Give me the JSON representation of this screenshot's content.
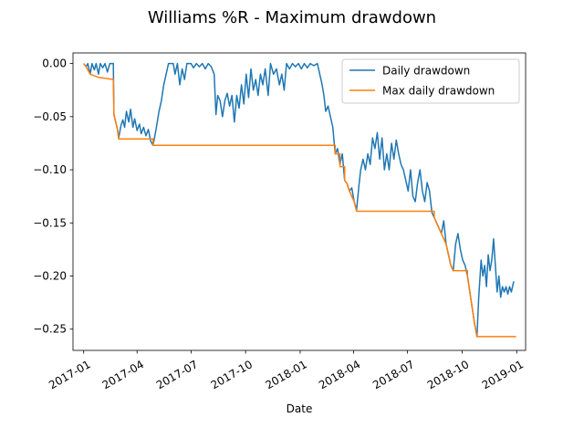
{
  "chart_data": {
    "type": "line",
    "title": "Williams %R - Maximum drawdown",
    "xlabel": "Date",
    "ylabel": "",
    "x_ticks": [
      "2017-01",
      "2017-04",
      "2017-07",
      "2017-10",
      "2018-01",
      "2018-04",
      "2018-07",
      "2018-10",
      "2019-01"
    ],
    "y_ticks": [
      "0.00",
      "−0.05",
      "−0.10",
      "−0.15",
      "−0.20",
      "−0.25"
    ],
    "xlim": [
      "2016-12-14",
      "2019-01-16"
    ],
    "ylim": [
      -0.27,
      0.01
    ],
    "grid": false,
    "legend_position": "top-right",
    "series": [
      {
        "name": "Daily drawdown",
        "color": "#1f77b4",
        "points": [
          [
            "2017-01-01",
            0.0
          ],
          [
            "2017-01-05",
            -0.003
          ],
          [
            "2017-01-08",
            0.0
          ],
          [
            "2017-01-12",
            -0.01
          ],
          [
            "2017-01-15",
            0.0
          ],
          [
            "2017-01-19",
            -0.006
          ],
          [
            "2017-01-22",
            0.0
          ],
          [
            "2017-01-26",
            -0.01
          ],
          [
            "2017-01-29",
            0.0
          ],
          [
            "2017-02-02",
            -0.004
          ],
          [
            "2017-02-06",
            0.0
          ],
          [
            "2017-02-10",
            -0.008
          ],
          [
            "2017-02-14",
            0.0
          ],
          [
            "2017-02-20",
            0.0
          ],
          [
            "2017-02-21",
            -0.048
          ],
          [
            "2017-02-24",
            -0.055
          ],
          [
            "2017-02-27",
            -0.062
          ],
          [
            "2017-03-01",
            -0.07
          ],
          [
            "2017-03-05",
            -0.058
          ],
          [
            "2017-03-08",
            -0.053
          ],
          [
            "2017-03-11",
            -0.06
          ],
          [
            "2017-03-14",
            -0.045
          ],
          [
            "2017-03-18",
            -0.055
          ],
          [
            "2017-03-21",
            -0.043
          ],
          [
            "2017-03-25",
            -0.06
          ],
          [
            "2017-03-28",
            -0.052
          ],
          [
            "2017-04-01",
            -0.063
          ],
          [
            "2017-04-05",
            -0.057
          ],
          [
            "2017-04-08",
            -0.066
          ],
          [
            "2017-04-12",
            -0.06
          ],
          [
            "2017-04-16",
            -0.068
          ],
          [
            "2017-04-20",
            -0.062
          ],
          [
            "2017-04-24",
            -0.073
          ],
          [
            "2017-04-28",
            -0.077
          ],
          [
            "2017-05-03",
            -0.062
          ],
          [
            "2017-05-08",
            -0.045
          ],
          [
            "2017-05-12",
            -0.035
          ],
          [
            "2017-05-16",
            -0.02
          ],
          [
            "2017-05-20",
            -0.01
          ],
          [
            "2017-05-24",
            0.0
          ],
          [
            "2017-06-01",
            0.0
          ],
          [
            "2017-06-04",
            -0.01
          ],
          [
            "2017-06-08",
            0.0
          ],
          [
            "2017-06-12",
            -0.02
          ],
          [
            "2017-06-16",
            -0.005
          ],
          [
            "2017-06-20",
            -0.015
          ],
          [
            "2017-06-24",
            0.0
          ],
          [
            "2017-07-01",
            0.0
          ],
          [
            "2017-07-05",
            -0.004
          ],
          [
            "2017-07-10",
            0.0
          ],
          [
            "2017-07-15",
            -0.003
          ],
          [
            "2017-07-20",
            0.0
          ],
          [
            "2017-07-25",
            -0.005
          ],
          [
            "2017-07-30",
            0.0
          ],
          [
            "2017-08-04",
            -0.003
          ],
          [
            "2017-08-09",
            -0.01
          ],
          [
            "2017-08-12",
            -0.048
          ],
          [
            "2017-08-15",
            -0.03
          ],
          [
            "2017-08-19",
            -0.035
          ],
          [
            "2017-08-23",
            -0.05
          ],
          [
            "2017-08-27",
            -0.035
          ],
          [
            "2017-08-31",
            -0.028
          ],
          [
            "2017-09-04",
            -0.04
          ],
          [
            "2017-09-08",
            -0.03
          ],
          [
            "2017-09-12",
            -0.055
          ],
          [
            "2017-09-16",
            -0.03
          ],
          [
            "2017-09-20",
            -0.042
          ],
          [
            "2017-09-24",
            -0.02
          ],
          [
            "2017-09-28",
            -0.038
          ],
          [
            "2017-10-02",
            -0.01
          ],
          [
            "2017-10-06",
            -0.032
          ],
          [
            "2017-10-10",
            -0.005
          ],
          [
            "2017-10-14",
            -0.025
          ],
          [
            "2017-10-18",
            -0.015
          ],
          [
            "2017-10-22",
            -0.03
          ],
          [
            "2017-10-26",
            -0.01
          ],
          [
            "2017-10-30",
            -0.02
          ],
          [
            "2017-11-03",
            -0.005
          ],
          [
            "2017-11-08",
            -0.03
          ],
          [
            "2017-11-12",
            0.0
          ],
          [
            "2017-11-17",
            -0.01
          ],
          [
            "2017-11-22",
            -0.005
          ],
          [
            "2017-11-27",
            -0.02
          ],
          [
            "2017-12-01",
            -0.01
          ],
          [
            "2017-12-05",
            -0.025
          ],
          [
            "2017-12-09",
            0.0
          ],
          [
            "2017-12-14",
            -0.005
          ],
          [
            "2017-12-19",
            0.0
          ],
          [
            "2017-12-24",
            -0.003
          ],
          [
            "2017-12-29",
            0.0
          ],
          [
            "2018-01-03",
            -0.005
          ],
          [
            "2018-01-08",
            0.0
          ],
          [
            "2018-01-13",
            -0.004
          ],
          [
            "2018-01-18",
            0.0
          ],
          [
            "2018-01-24",
            -0.002
          ],
          [
            "2018-01-30",
            0.0
          ],
          [
            "2018-02-03",
            -0.01
          ],
          [
            "2018-02-07",
            -0.02
          ],
          [
            "2018-02-10",
            -0.03
          ],
          [
            "2018-02-13",
            -0.045
          ],
          [
            "2018-02-17",
            -0.04
          ],
          [
            "2018-02-21",
            -0.05
          ],
          [
            "2018-02-25",
            -0.06
          ],
          [
            "2018-03-01",
            -0.085
          ],
          [
            "2018-03-05",
            -0.08
          ],
          [
            "2018-03-09",
            -0.095
          ],
          [
            "2018-03-13",
            -0.085
          ],
          [
            "2018-03-17",
            -0.11
          ],
          [
            "2018-03-21",
            -0.113
          ],
          [
            "2018-03-25",
            -0.12
          ],
          [
            "2018-03-29",
            -0.117
          ],
          [
            "2018-04-02",
            -0.13
          ],
          [
            "2018-04-06",
            -0.138
          ],
          [
            "2018-04-10",
            -0.115
          ],
          [
            "2018-04-13",
            -0.1
          ],
          [
            "2018-04-17",
            -0.09
          ],
          [
            "2018-04-21",
            -0.1
          ],
          [
            "2018-04-25",
            -0.085
          ],
          [
            "2018-04-29",
            -0.095
          ],
          [
            "2018-05-03",
            -0.07
          ],
          [
            "2018-05-07",
            -0.08
          ],
          [
            "2018-05-11",
            -0.065
          ],
          [
            "2018-05-15",
            -0.09
          ],
          [
            "2018-05-19",
            -0.07
          ],
          [
            "2018-05-23",
            -0.1
          ],
          [
            "2018-05-27",
            -0.085
          ],
          [
            "2018-05-31",
            -0.1
          ],
          [
            "2018-06-04",
            -0.075
          ],
          [
            "2018-06-08",
            -0.09
          ],
          [
            "2018-06-12",
            -0.072
          ],
          [
            "2018-06-16",
            -0.085
          ],
          [
            "2018-06-20",
            -0.095
          ],
          [
            "2018-06-24",
            -0.1
          ],
          [
            "2018-06-28",
            -0.11
          ],
          [
            "2018-07-02",
            -0.12
          ],
          [
            "2018-07-06",
            -0.1
          ],
          [
            "2018-07-10",
            -0.125
          ],
          [
            "2018-07-14",
            -0.13
          ],
          [
            "2018-07-18",
            -0.112
          ],
          [
            "2018-07-22",
            -0.1
          ],
          [
            "2018-07-26",
            -0.12
          ],
          [
            "2018-07-30",
            -0.13
          ],
          [
            "2018-08-03",
            -0.112
          ],
          [
            "2018-08-07",
            -0.12
          ],
          [
            "2018-08-11",
            -0.14
          ],
          [
            "2018-08-15",
            -0.145
          ],
          [
            "2018-08-19",
            -0.15
          ],
          [
            "2018-08-23",
            -0.155
          ],
          [
            "2018-08-27",
            -0.16
          ],
          [
            "2018-08-31",
            -0.148
          ],
          [
            "2018-09-04",
            -0.17
          ],
          [
            "2018-09-08",
            -0.18
          ],
          [
            "2018-09-12",
            -0.19
          ],
          [
            "2018-09-16",
            -0.195
          ],
          [
            "2018-09-20",
            -0.17
          ],
          [
            "2018-09-24",
            -0.16
          ],
          [
            "2018-09-28",
            -0.175
          ],
          [
            "2018-10-02",
            -0.185
          ],
          [
            "2018-10-06",
            -0.19
          ],
          [
            "2018-10-10",
            -0.2
          ],
          [
            "2018-10-14",
            -0.215
          ],
          [
            "2018-10-18",
            -0.23
          ],
          [
            "2018-10-22",
            -0.245
          ],
          [
            "2018-10-26",
            -0.257
          ],
          [
            "2018-10-29",
            -0.22
          ],
          [
            "2018-11-02",
            -0.185
          ],
          [
            "2018-11-05",
            -0.2
          ],
          [
            "2018-11-08",
            -0.19
          ],
          [
            "2018-11-11",
            -0.21
          ],
          [
            "2018-11-14",
            -0.18
          ],
          [
            "2018-11-17",
            -0.195
          ],
          [
            "2018-11-20",
            -0.185
          ],
          [
            "2018-11-23",
            -0.165
          ],
          [
            "2018-11-26",
            -0.19
          ],
          [
            "2018-11-29",
            -0.215
          ],
          [
            "2018-12-02",
            -0.2
          ],
          [
            "2018-12-05",
            -0.22
          ],
          [
            "2018-12-08",
            -0.21
          ],
          [
            "2018-12-11",
            -0.215
          ],
          [
            "2018-12-14",
            -0.21
          ],
          [
            "2018-12-17",
            -0.217
          ],
          [
            "2018-12-20",
            -0.21
          ],
          [
            "2018-12-23",
            -0.215
          ],
          [
            "2018-12-27",
            -0.205
          ]
        ]
      },
      {
        "name": "Max daily drawdown",
        "color": "#ff7f0e",
        "points": [
          [
            "2017-01-01",
            0.0
          ],
          [
            "2017-01-05",
            -0.003
          ],
          [
            "2017-01-12",
            -0.01
          ],
          [
            "2017-01-26",
            -0.013
          ],
          [
            "2017-02-20",
            -0.015
          ],
          [
            "2017-02-21",
            -0.048
          ],
          [
            "2017-02-24",
            -0.055
          ],
          [
            "2017-02-27",
            -0.062
          ],
          [
            "2017-03-01",
            -0.071
          ],
          [
            "2017-04-28",
            -0.071
          ],
          [
            "2017-04-28",
            -0.077
          ],
          [
            "2018-03-01",
            -0.077
          ],
          [
            "2018-03-01",
            -0.085
          ],
          [
            "2018-03-09",
            -0.085
          ],
          [
            "2018-03-09",
            -0.097
          ],
          [
            "2018-03-17",
            -0.097
          ],
          [
            "2018-03-17",
            -0.11
          ],
          [
            "2018-03-21",
            -0.113
          ],
          [
            "2018-03-25",
            -0.12
          ],
          [
            "2018-04-02",
            -0.13
          ],
          [
            "2018-04-06",
            -0.139
          ],
          [
            "2018-08-15",
            -0.139
          ],
          [
            "2018-08-15",
            -0.145
          ],
          [
            "2018-08-19",
            -0.15
          ],
          [
            "2018-08-23",
            -0.155
          ],
          [
            "2018-08-27",
            -0.16
          ],
          [
            "2018-09-04",
            -0.17
          ],
          [
            "2018-09-08",
            -0.18
          ],
          [
            "2018-09-12",
            -0.19
          ],
          [
            "2018-09-16",
            -0.195
          ],
          [
            "2018-10-10",
            -0.195
          ],
          [
            "2018-10-10",
            -0.2
          ],
          [
            "2018-10-14",
            -0.215
          ],
          [
            "2018-10-18",
            -0.23
          ],
          [
            "2018-10-22",
            -0.245
          ],
          [
            "2018-10-26",
            -0.257
          ],
          [
            "2018-12-31",
            -0.257
          ]
        ]
      }
    ]
  }
}
